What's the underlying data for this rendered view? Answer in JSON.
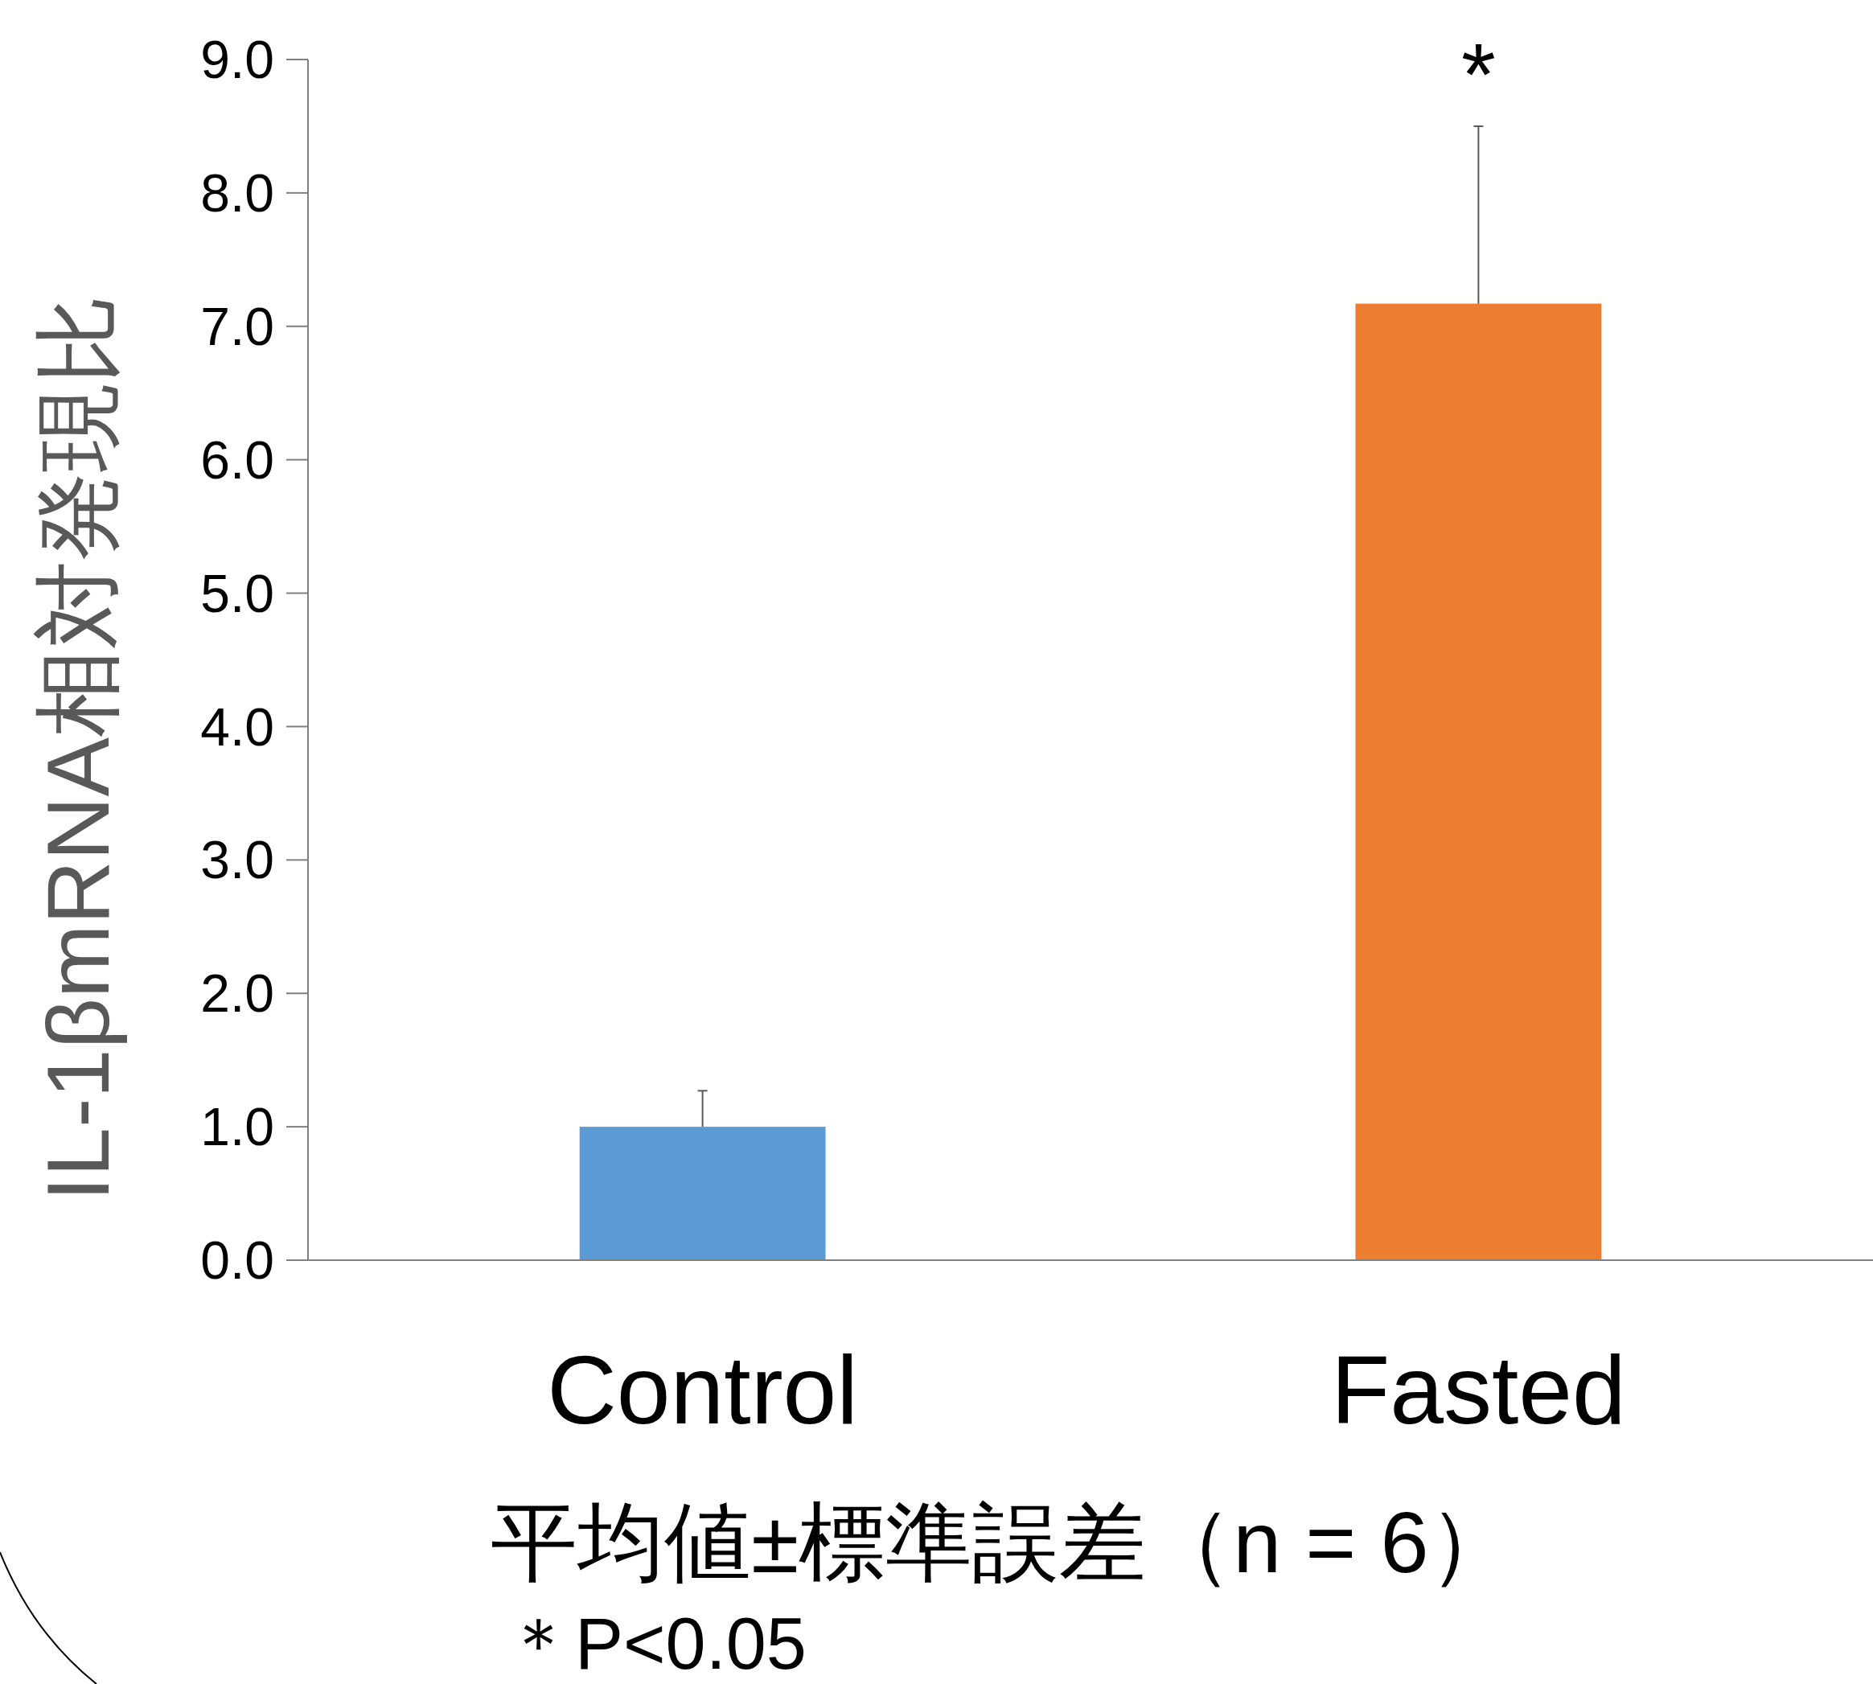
{
  "chart_data": {
    "type": "bar",
    "categories": [
      "Control",
      "Fasted"
    ],
    "values": [
      1.0,
      7.17
    ],
    "colors": [
      "#5b9bd5",
      "#ed7d31"
    ],
    "errors": [
      [
        1.0,
        1.27
      ],
      [
        7.17,
        8.5
      ]
    ],
    "ylabel": "IL-1βmRNA相対発現比",
    "ylim": [
      0,
      9
    ],
    "yticks": [
      {
        "value": 0,
        "label": "0.0"
      },
      {
        "value": 1,
        "label": "1.0"
      },
      {
        "value": 2,
        "label": "2.0"
      },
      {
        "value": 3,
        "label": "3.0"
      },
      {
        "value": 4,
        "label": "4.0"
      },
      {
        "value": 5,
        "label": "5.0"
      },
      {
        "value": 6,
        "label": "6.0"
      },
      {
        "value": 7,
        "label": "7.0"
      },
      {
        "value": 8,
        "label": "8.0"
      },
      {
        "value": 9,
        "label": "9.0"
      }
    ],
    "annotations": [
      "*",
      "平均値±標準誤差（n = 6）",
      "＊P<0.05"
    ]
  }
}
